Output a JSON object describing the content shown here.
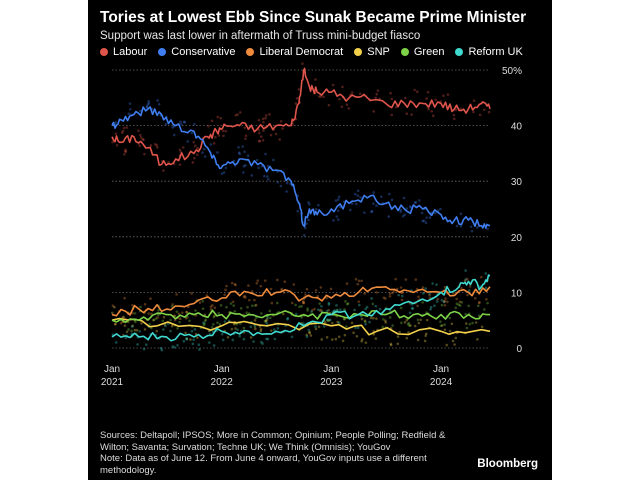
{
  "header": {
    "title": "Tories at Lowest Ebb Since Sunak Became Prime Minister",
    "subtitle": "Support was last lower in aftermath of Truss mini-budget fiasco"
  },
  "legend": [
    {
      "label": "Labour",
      "color": "#e0554b"
    },
    {
      "label": "Conservative",
      "color": "#3f7ef0"
    },
    {
      "label": "Liberal Democrat",
      "color": "#ef8b3c"
    },
    {
      "label": "SNP",
      "color": "#f2d04a"
    },
    {
      "label": "Green",
      "color": "#7ed348"
    },
    {
      "label": "Reform UK",
      "color": "#3fd9cf"
    }
  ],
  "footer": {
    "sources": "Sources: Deltapoll; IPSOS; More in Common; Opinium; People Polling; Redfield & Wilton; Savanta; Survation; Techne UK; We Think (Omnisis); YouGov",
    "note": "Note: Data as of June 12. From June 4 onward, YouGov inputs use a different methodology.",
    "brand": "Bloomberg"
  },
  "chart_data": {
    "type": "line",
    "x_type": "date",
    "xlim": [
      "2021-01-01",
      "2024-06-12"
    ],
    "ylim": [
      0,
      50
    ],
    "y_ticks": [
      0,
      10,
      20,
      30,
      40,
      50
    ],
    "y_tick_labels": [
      "0",
      "10",
      "20",
      "30",
      "40",
      "50%"
    ],
    "x_ticks": [
      "2021-01-01",
      "2022-01-01",
      "2023-01-01",
      "2024-01-01"
    ],
    "x_tick_labels": [
      [
        "Jan",
        "2021"
      ],
      [
        "Jan",
        "2022"
      ],
      [
        "Jan",
        "2023"
      ],
      [
        "Jan",
        "2024"
      ]
    ],
    "grid": true,
    "series": [
      {
        "name": "Labour",
        "color": "#e0554b",
        "x": [
          "2021-01-01",
          "2021-02-01",
          "2021-03-15",
          "2021-05-01",
          "2021-06-15",
          "2021-08-01",
          "2021-10-01",
          "2021-11-15",
          "2021-12-15",
          "2022-01-15",
          "2022-03-01",
          "2022-05-01",
          "2022-07-01",
          "2022-08-20",
          "2022-09-15",
          "2022-10-01",
          "2022-10-20",
          "2022-11-15",
          "2023-01-01",
          "2023-03-01",
          "2023-05-01",
          "2023-07-01",
          "2023-09-01",
          "2023-11-01",
          "2024-01-01",
          "2024-02-15",
          "2024-04-01",
          "2024-05-15",
          "2024-06-12"
        ],
        "values": [
          38,
          37,
          38,
          36,
          33,
          34,
          35,
          38,
          39,
          40,
          40,
          39.5,
          40,
          40,
          44,
          50,
          47,
          46,
          46,
          45,
          45,
          44,
          44,
          44,
          44,
          43,
          43,
          44,
          43
        ]
      },
      {
        "name": "Conservative",
        "color": "#3f7ef0",
        "x": [
          "2021-01-01",
          "2021-02-01",
          "2021-03-15",
          "2021-05-01",
          "2021-06-15",
          "2021-08-01",
          "2021-10-01",
          "2021-11-15",
          "2021-12-15",
          "2022-01-15",
          "2022-03-01",
          "2022-05-01",
          "2022-07-01",
          "2022-08-20",
          "2022-09-15",
          "2022-10-01",
          "2022-10-20",
          "2022-11-15",
          "2023-01-01",
          "2023-03-01",
          "2023-05-01",
          "2023-07-01",
          "2023-09-01",
          "2023-11-01",
          "2024-01-01",
          "2024-02-15",
          "2024-04-01",
          "2024-05-15",
          "2024-06-12"
        ],
        "values": [
          40,
          41,
          42,
          43,
          42,
          40,
          39,
          36,
          33,
          33,
          34,
          33,
          32,
          30,
          26,
          22,
          25,
          24,
          25,
          26,
          27,
          26,
          25,
          25,
          24,
          23,
          23,
          22,
          22
        ]
      },
      {
        "name": "Liberal Democrat",
        "color": "#ef8b3c",
        "x": [
          "2021-01-01",
          "2021-04-01",
          "2021-07-01",
          "2021-10-01",
          "2022-01-01",
          "2022-04-01",
          "2022-07-01",
          "2022-10-01",
          "2023-01-01",
          "2023-04-01",
          "2023-07-01",
          "2023-10-01",
          "2024-01-01",
          "2024-04-01",
          "2024-06-12"
        ],
        "values": [
          6,
          7,
          7,
          8,
          9,
          10,
          10,
          9,
          9,
          10,
          11,
          10,
          10,
          10,
          11
        ]
      },
      {
        "name": "SNP",
        "color": "#f2d04a",
        "x": [
          "2021-01-01",
          "2021-06-01",
          "2022-01-01",
          "2022-06-01",
          "2023-01-01",
          "2023-06-01",
          "2024-01-01",
          "2024-06-12"
        ],
        "values": [
          5,
          4,
          4,
          4,
          4,
          3,
          3,
          3
        ]
      },
      {
        "name": "Green",
        "color": "#7ed348",
        "x": [
          "2021-01-01",
          "2021-04-01",
          "2021-07-01",
          "2021-10-01",
          "2022-01-01",
          "2022-04-01",
          "2022-07-01",
          "2022-10-01",
          "2023-01-01",
          "2023-04-01",
          "2023-07-01",
          "2023-10-01",
          "2024-01-01",
          "2024-04-01",
          "2024-06-12"
        ],
        "values": [
          5,
          5,
          6,
          6,
          6,
          6,
          6,
          6,
          6,
          6,
          6,
          6,
          6,
          6,
          6
        ]
      },
      {
        "name": "Reform UK",
        "color": "#3fd9cf",
        "x": [
          "2021-01-01",
          "2021-04-01",
          "2021-07-01",
          "2021-10-01",
          "2022-01-01",
          "2022-04-01",
          "2022-07-01",
          "2022-10-01",
          "2023-01-01",
          "2023-04-01",
          "2023-07-01",
          "2023-10-01",
          "2024-01-01",
          "2024-03-01",
          "2024-04-01",
          "2024-05-15",
          "2024-06-12"
        ],
        "values": [
          2,
          2,
          2,
          2,
          3,
          3,
          3,
          4,
          6,
          6,
          7,
          8,
          10,
          11,
          12,
          11,
          13
        ]
      }
    ]
  }
}
